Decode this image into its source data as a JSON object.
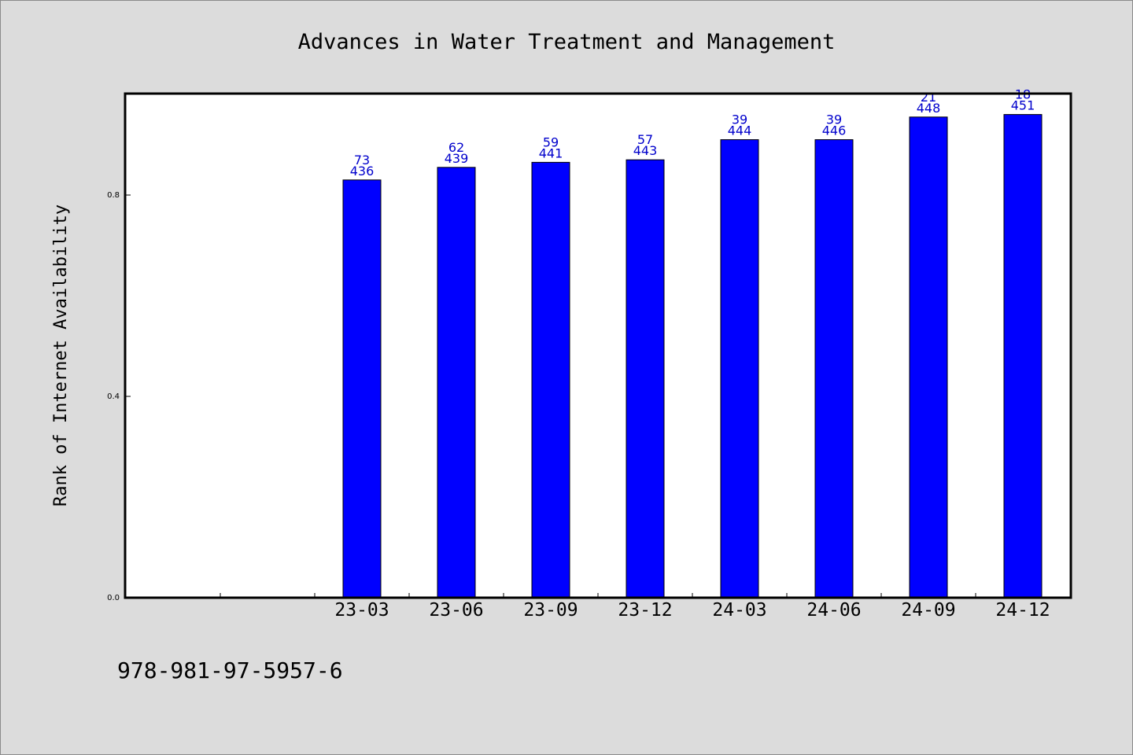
{
  "chart_data": {
    "type": "bar",
    "title": "Advances in Water Treatment and Management",
    "ylabel": "Rank of Internet Availability",
    "xlabel": "",
    "ylim": [
      0,
      1.0
    ],
    "yticks": [
      "0.0",
      "0.4",
      "0.8"
    ],
    "categories": [
      "23-03",
      "23-06",
      "23-09",
      "23-12",
      "24-03",
      "24-06",
      "24-09",
      "24-12"
    ],
    "values": [
      0.83,
      0.855,
      0.865,
      0.87,
      0.91,
      0.91,
      0.955,
      0.96
    ],
    "label_top": [
      "73",
      "62",
      "59",
      "57",
      "39",
      "39",
      "21",
      "18"
    ],
    "label_bottom": [
      "436",
      "439",
      "441",
      "443",
      "444",
      "446",
      "448",
      "451"
    ],
    "bar_color": "#0000ff",
    "label_color": "#0000cc",
    "grid": false,
    "legend": "none"
  },
  "footer": {
    "isbn": "978-981-97-5957-6"
  }
}
